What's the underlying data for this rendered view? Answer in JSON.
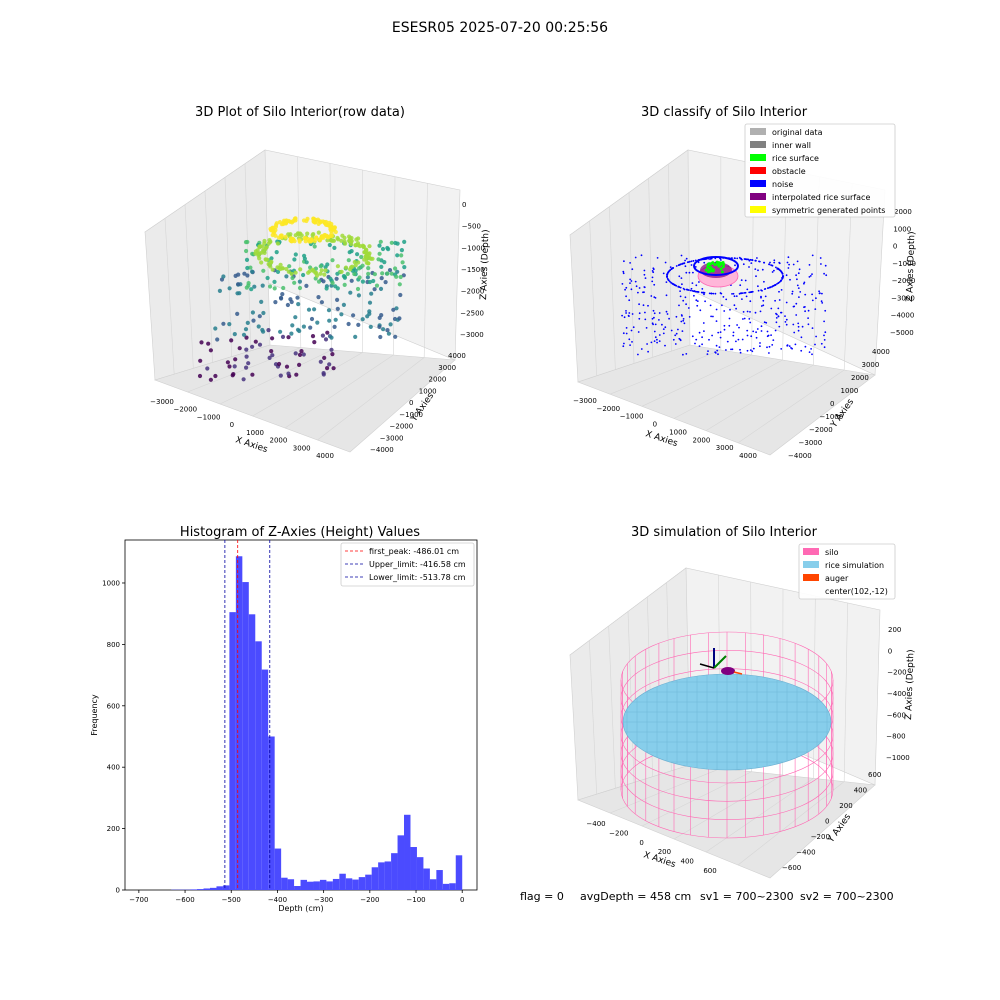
{
  "figure": {
    "suptitle": "ESESR05 2025-07-20 00:25:56",
    "status": {
      "flag": "flag = 0",
      "avg_depth": "avgDepth = 458 cm",
      "sv1": "sv1 = 700~2300",
      "sv2": "sv2 = 700~2300"
    }
  },
  "chart_data": [
    {
      "type": "scatter",
      "projection": "3d",
      "title": "3D Plot of Silo Interior(row data)",
      "xlabel": "X Axies",
      "ylabel": "Y Axies",
      "zlabel": "Z Axies (Depth)",
      "x_ticks": [
        "−3000",
        "−2000",
        "−1000",
        "0",
        "1000",
        "2000",
        "3000",
        "4000"
      ],
      "y_ticks": [
        "−4000",
        "−3000",
        "−2000",
        "−1000",
        "0",
        "1000",
        "2000",
        "3000",
        "4000"
      ],
      "z_ticks": [
        "0",
        "−500",
        "−1000",
        "−1500",
        "−2000",
        "−2500",
        "−3000"
      ],
      "colormap": "viridis (by depth)",
      "grid": true
    },
    {
      "type": "scatter",
      "projection": "3d",
      "title": "3D classify of Silo Interior",
      "xlabel": "X Axies",
      "ylabel": "Y Axies",
      "zlabel": "Z Axies (Depth)",
      "x_ticks": [
        "−3000",
        "−2000",
        "−1000",
        "0",
        "1000",
        "2000",
        "3000",
        "4000"
      ],
      "y_ticks": [
        "−4000",
        "−3000",
        "−2000",
        "−1000",
        "0",
        "1000",
        "2000",
        "3000",
        "4000"
      ],
      "z_ticks": [
        "2000",
        "1000",
        "0",
        "−1000",
        "−2000",
        "−3000",
        "−4000",
        "−5000"
      ],
      "legend": [
        {
          "label": "original data",
          "color": "#b0b0b0"
        },
        {
          "label": "inner wall",
          "color": "#808080"
        },
        {
          "label": "rice surface",
          "color": "#00ff00"
        },
        {
          "label": "obstacle",
          "color": "#ff0000"
        },
        {
          "label": "noise",
          "color": "#0000ff"
        },
        {
          "label": "interpolated rice surface",
          "color": "#800080"
        },
        {
          "label": "symmetric generated points",
          "color": "#ffff00"
        }
      ],
      "legend_loc": "upper-right",
      "grid": true
    },
    {
      "type": "bar",
      "title": "Histogram of Z-Axies (Height) Values",
      "xlabel": "Depth (cm)",
      "ylabel": "Frequency",
      "xlim": [
        -730,
        32
      ],
      "ylim": [
        0,
        1140
      ],
      "x_ticks": [
        -700,
        -600,
        -500,
        -400,
        -300,
        -200,
        -100,
        0
      ],
      "y_ticks": [
        0,
        200,
        400,
        600,
        800,
        1000
      ],
      "bin_width": 14,
      "bar_color": "#4b4bff",
      "bins": [
        {
          "x": -630,
          "y": 1
        },
        {
          "x": -616,
          "y": 1
        },
        {
          "x": -602,
          "y": 1
        },
        {
          "x": -588,
          "y": 2
        },
        {
          "x": -574,
          "y": 3
        },
        {
          "x": -560,
          "y": 5
        },
        {
          "x": -546,
          "y": 7
        },
        {
          "x": -532,
          "y": 12
        },
        {
          "x": -518,
          "y": 15
        },
        {
          "x": -504,
          "y": 905
        },
        {
          "x": -490,
          "y": 1087
        },
        {
          "x": -476,
          "y": 1003
        },
        {
          "x": -462,
          "y": 898
        },
        {
          "x": -448,
          "y": 810
        },
        {
          "x": -434,
          "y": 718
        },
        {
          "x": -420,
          "y": 500
        },
        {
          "x": -406,
          "y": 135
        },
        {
          "x": -392,
          "y": 40
        },
        {
          "x": -378,
          "y": 35
        },
        {
          "x": -364,
          "y": 13
        },
        {
          "x": -350,
          "y": 33
        },
        {
          "x": -336,
          "y": 27
        },
        {
          "x": -322,
          "y": 28
        },
        {
          "x": -308,
          "y": 33
        },
        {
          "x": -294,
          "y": 28
        },
        {
          "x": -280,
          "y": 36
        },
        {
          "x": -266,
          "y": 53
        },
        {
          "x": -252,
          "y": 38
        },
        {
          "x": -238,
          "y": 34
        },
        {
          "x": -224,
          "y": 42
        },
        {
          "x": -210,
          "y": 50
        },
        {
          "x": -196,
          "y": 74
        },
        {
          "x": -182,
          "y": 90
        },
        {
          "x": -168,
          "y": 93
        },
        {
          "x": -154,
          "y": 120
        },
        {
          "x": -140,
          "y": 178
        },
        {
          "x": -126,
          "y": 245
        },
        {
          "x": -112,
          "y": 140
        },
        {
          "x": -98,
          "y": 107
        },
        {
          "x": -84,
          "y": 70
        },
        {
          "x": -70,
          "y": 35
        },
        {
          "x": -56,
          "y": 65
        },
        {
          "x": -42,
          "y": 20
        },
        {
          "x": -28,
          "y": 22
        },
        {
          "x": -14,
          "y": 113
        }
      ],
      "vlines": [
        {
          "label": "first_peak: -486.01 cm",
          "x": -486.01,
          "color": "#ff0000"
        },
        {
          "label": "Upper_limit: -416.58 cm",
          "x": -416.58,
          "color": "#0000a0"
        },
        {
          "label": "Lower_limit: -513.78 cm",
          "x": -513.78,
          "color": "#0000a0"
        }
      ],
      "legend_loc": "upper-right",
      "grid": false
    },
    {
      "type": "scatter",
      "projection": "3d",
      "title": "3D simulation of Silo Interior",
      "xlabel": "X Axies",
      "ylabel": "Y Axies",
      "zlabel": "Z Axies (Depth)",
      "x_ticks": [
        "−400",
        "−200",
        "0",
        "200",
        "400",
        "600"
      ],
      "y_ticks": [
        "−600",
        "−400",
        "−200",
        "0",
        "200",
        "400",
        "600"
      ],
      "z_ticks": [
        "200",
        "0",
        "−200",
        "−400",
        "−600",
        "−800",
        "−1000"
      ],
      "legend": [
        {
          "label": "silo",
          "color": "#ff69b4"
        },
        {
          "label": "rice simulation",
          "color": "#87ceeb"
        },
        {
          "label": "auger",
          "color": "#ff4500"
        },
        {
          "label": "center(102,-12)",
          "color": ""
        }
      ],
      "legend_loc": "upper-right",
      "grid": true
    }
  ]
}
